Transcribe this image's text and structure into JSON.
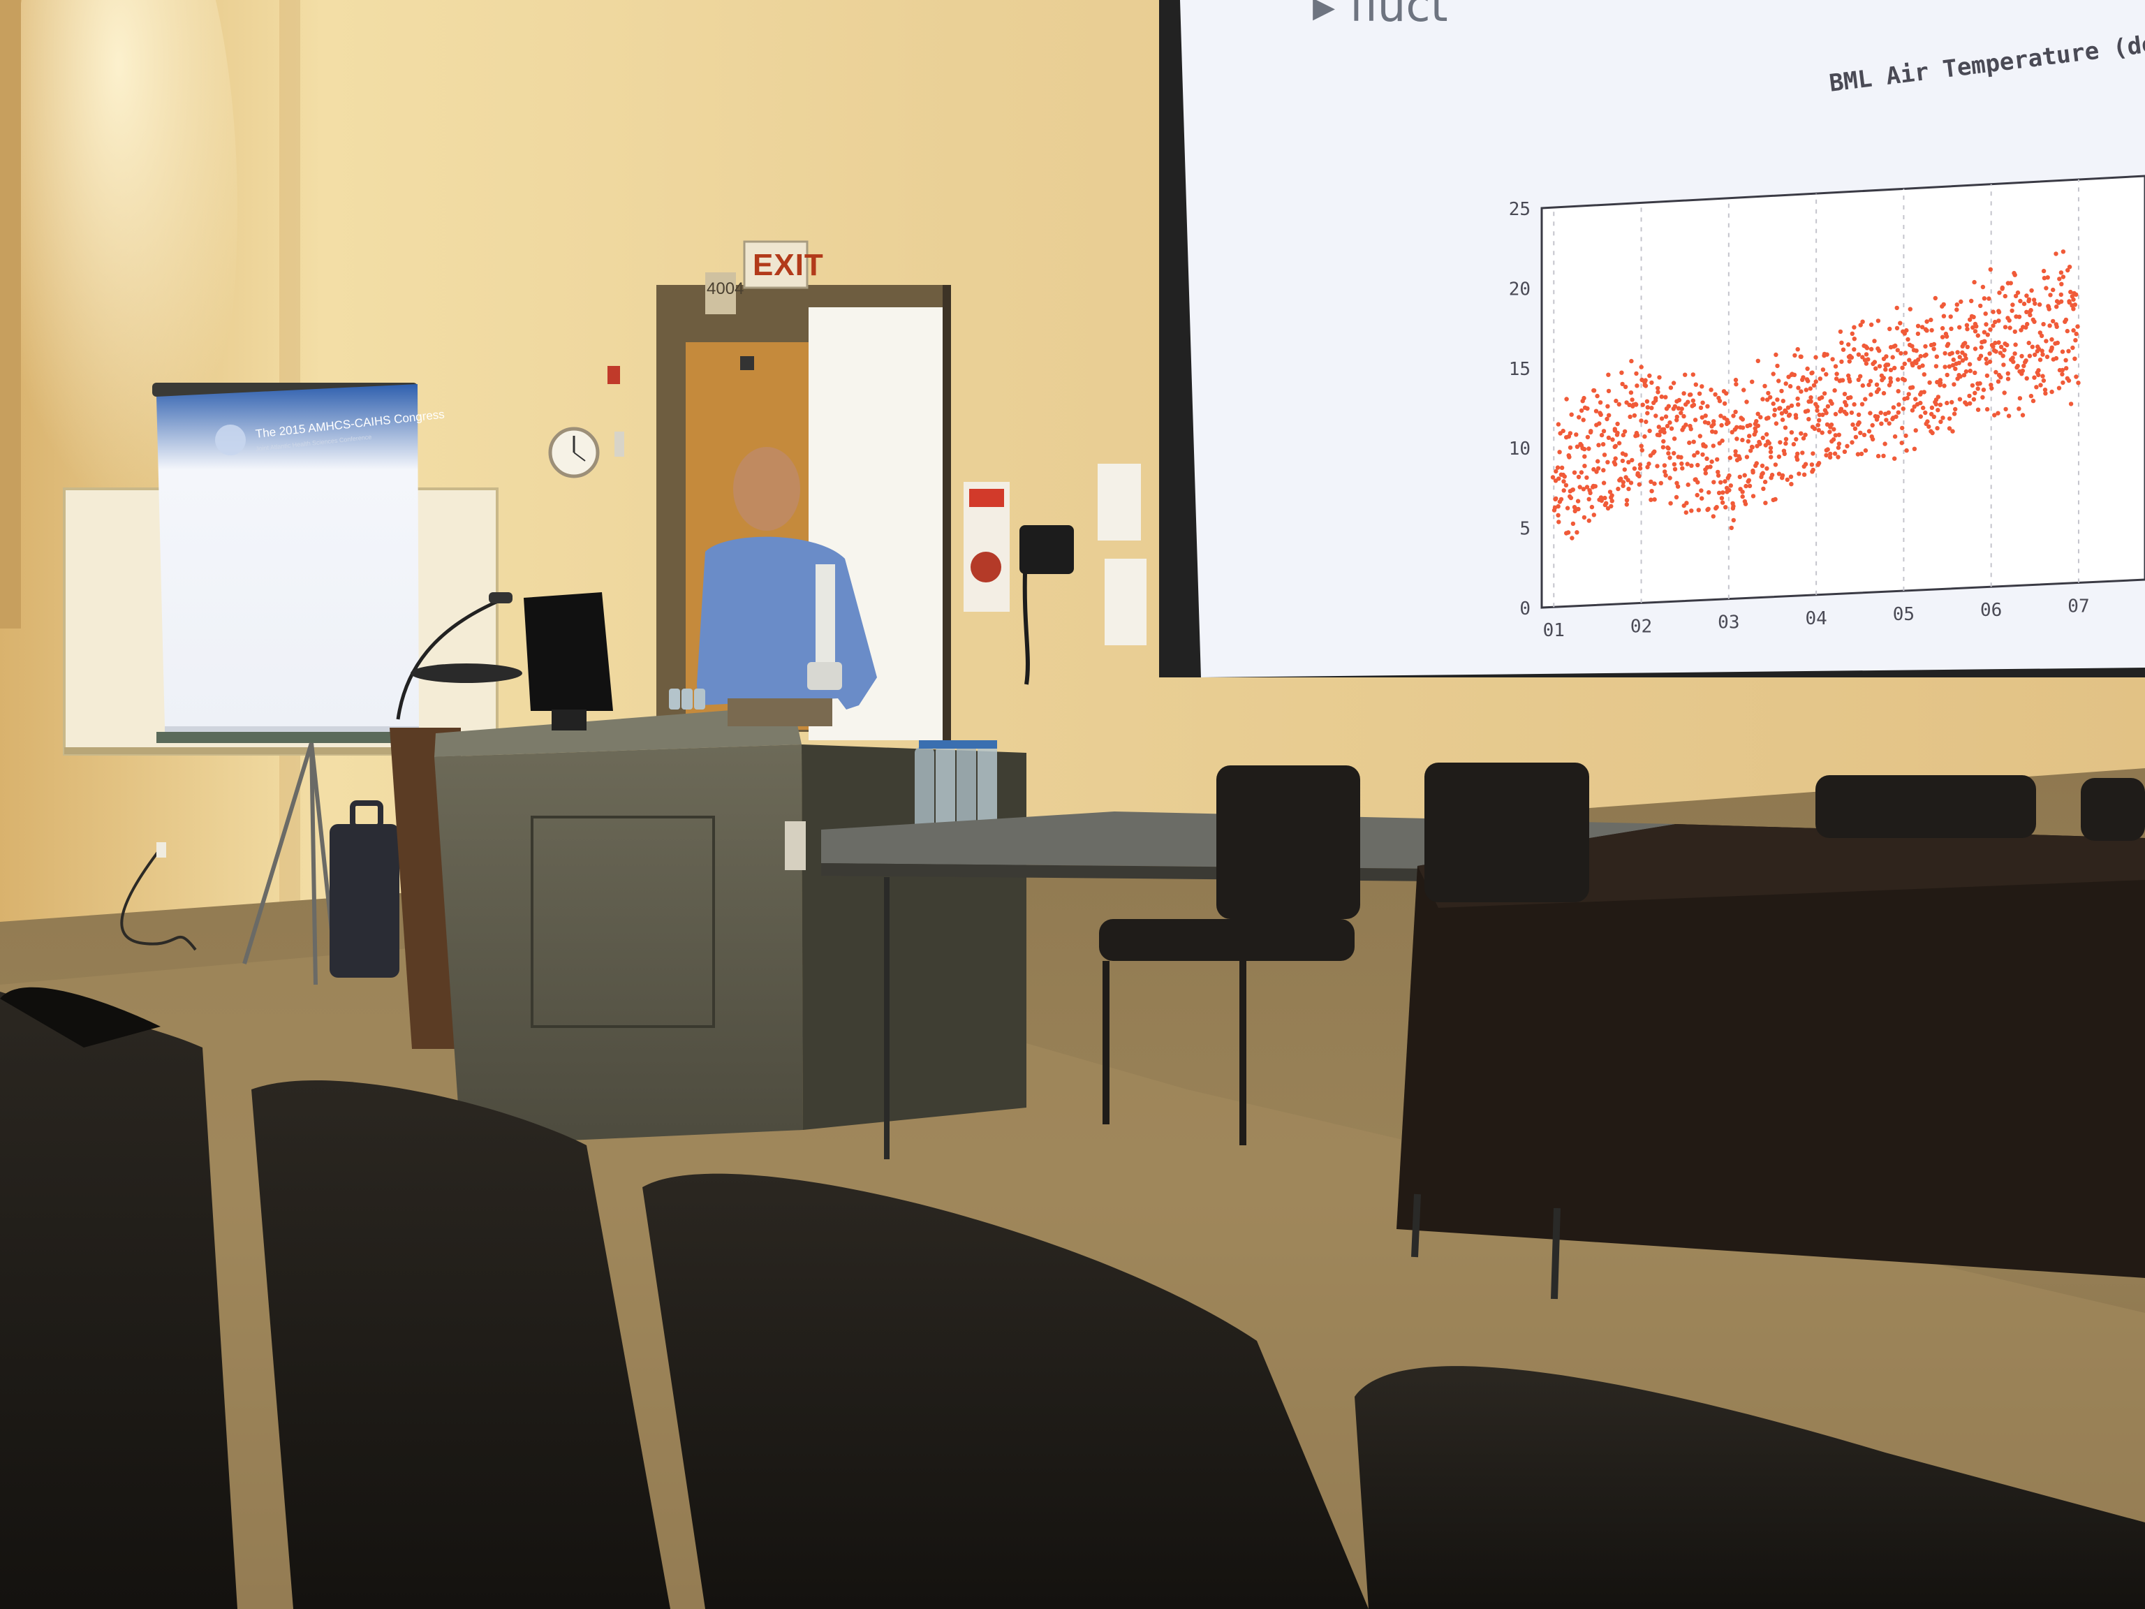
{
  "projection_screen": {
    "bullet_text": "▸ fluct",
    "chart_title": "BML Air Temperature (deg C), Hour"
  },
  "chart_data": {
    "type": "scatter",
    "title": "BML Air Temperature (deg C), Hour",
    "xlabel": "",
    "ylabel": "",
    "x_tick_labels": [
      "01",
      "02",
      "03",
      "04",
      "05",
      "06",
      "07"
    ],
    "y_ticks": [
      0,
      5,
      10,
      15,
      20,
      25
    ],
    "ylim": [
      0,
      25
    ],
    "marker_color": "#f05a38",
    "grid": true,
    "approx_trend": [
      {
        "x": "01",
        "y": 8
      },
      {
        "x": "02",
        "y": 11
      },
      {
        "x": "03",
        "y": 9
      },
      {
        "x": "04",
        "y": 12
      },
      {
        "x": "05",
        "y": 13
      },
      {
        "x": "06",
        "y": 15
      },
      {
        "x": "07",
        "y": 16
      }
    ]
  },
  "small_screen": {
    "slide_title": "The 2015 AMHCS-CAIHS Congress",
    "slide_subtitle": "Joint Atlantic Health Sciences Conference"
  },
  "signs": {
    "exit": "EXIT",
    "room_number": "4004"
  },
  "colors": {
    "wall": "#e8c98a",
    "screen": "#f2f4fa",
    "plot_points": "#f05a38",
    "seats": "#1c1a17"
  }
}
